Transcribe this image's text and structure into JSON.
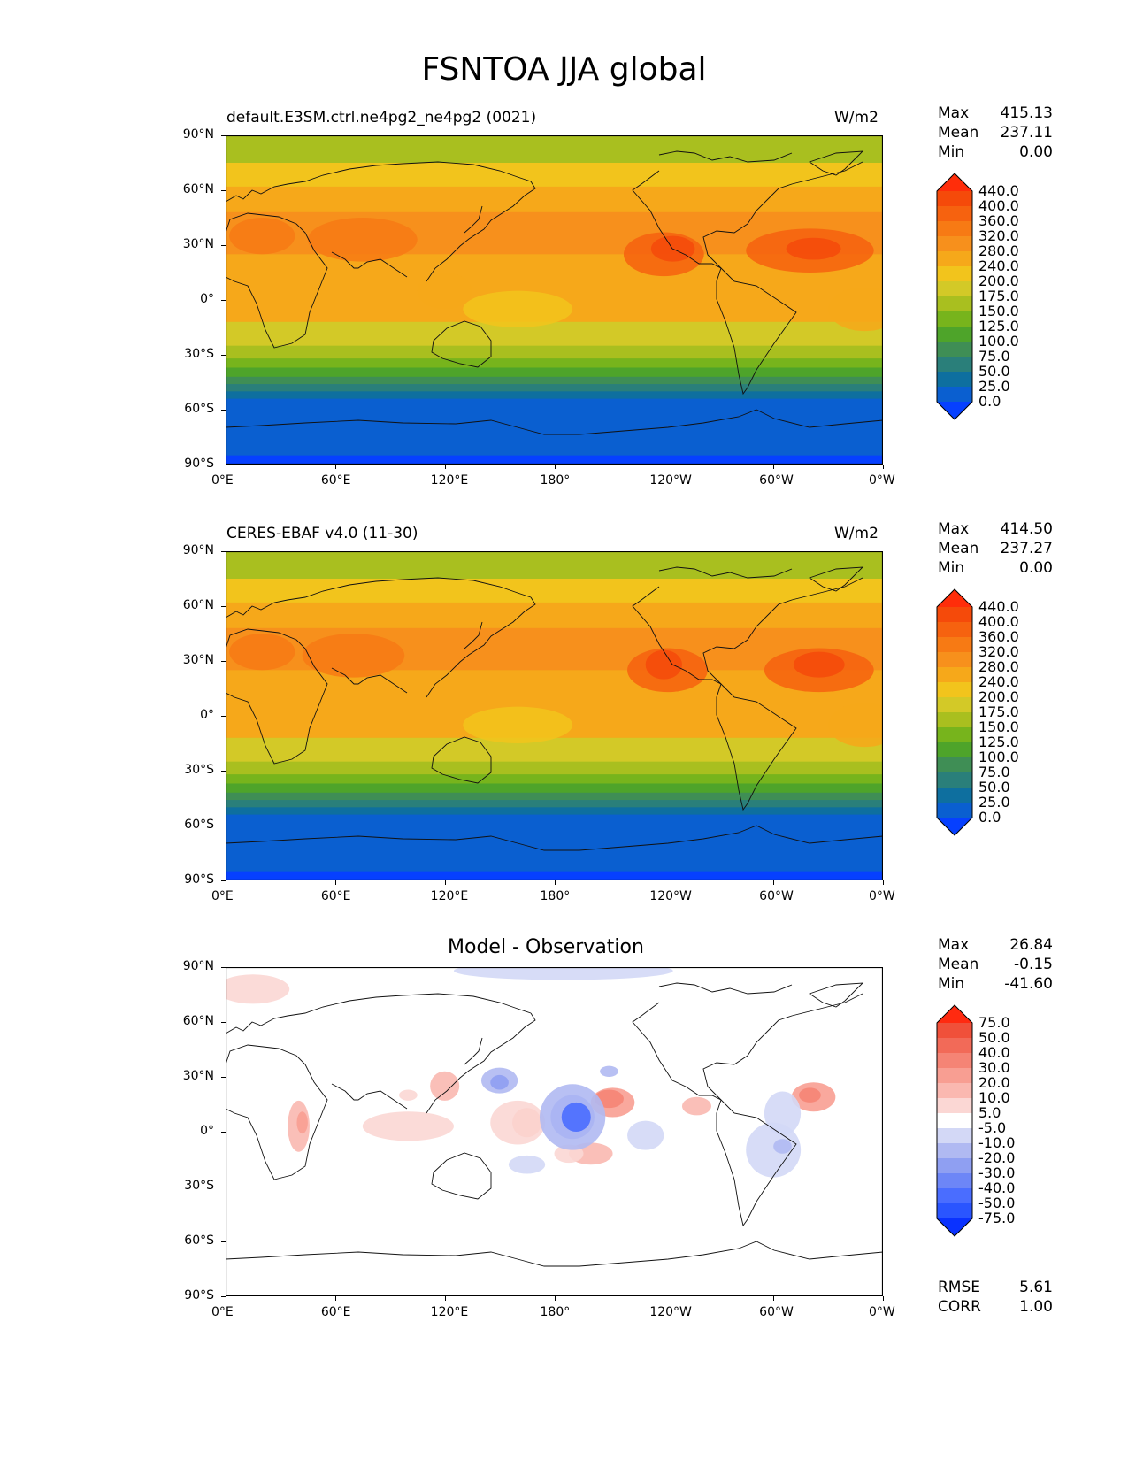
{
  "title": "FSNTOA JJA global",
  "x_ticks": [
    "0°E",
    "60°E",
    "120°E",
    "180°",
    "120°W",
    "60°W",
    "0°W"
  ],
  "y_ticks": [
    "90°N",
    "60°N",
    "30°N",
    "0°",
    "30°S",
    "60°S",
    "90°S"
  ],
  "colors": {
    "levels_full": [
      "#0640ff",
      "#0a5fd0",
      "#0e6f9f",
      "#2a7f7a",
      "#3f8e55",
      "#4ea42a",
      "#77b41c",
      "#a9bf1f",
      "#d3c927",
      "#f2c41c",
      "#f6a81a",
      "#f7901c",
      "#f77a14",
      "#f6620f",
      "#f54a0a",
      "#ff2d0a"
    ],
    "levels_diff": [
      "#0a32ff",
      "#2a55ff",
      "#4a6dff",
      "#6d86f7",
      "#8f9ff2",
      "#b0b9f2",
      "#d3d8f6",
      "#ffffff",
      "#fbd7d4",
      "#fab8b0",
      "#f89e92",
      "#f58475",
      "#f26a58",
      "#f0503a",
      "#ff2a10"
    ]
  },
  "panels": [
    {
      "label": "default.E3SM.ctrl.ne4pg2_ne4pg2 (0021)",
      "units": "W/m2",
      "stats": {
        "max_label": "Max",
        "max": "415.13",
        "mean_label": "Mean",
        "mean": "237.11",
        "min_label": "Min",
        "min": "0.00"
      },
      "colorbar": [
        "440.0",
        "400.0",
        "360.0",
        "320.0",
        "280.0",
        "240.0",
        "200.0",
        "175.0",
        "150.0",
        "125.0",
        "100.0",
        "75.0",
        "50.0",
        "25.0",
        "0.0"
      ]
    },
    {
      "label": "CERES-EBAF v4.0 (11-30)",
      "units": "W/m2",
      "stats": {
        "max_label": "Max",
        "max": "414.50",
        "mean_label": "Mean",
        "mean": "237.27",
        "min_label": "Min",
        "min": "0.00"
      },
      "colorbar": [
        "440.0",
        "400.0",
        "360.0",
        "320.0",
        "280.0",
        "240.0",
        "200.0",
        "175.0",
        "150.0",
        "125.0",
        "100.0",
        "75.0",
        "50.0",
        "25.0",
        "0.0"
      ]
    },
    {
      "title": "Model - Observation",
      "stats": {
        "max_label": "Max",
        "max": "26.84",
        "mean_label": "Mean",
        "mean": "-0.15",
        "min_label": "Min",
        "min": "-41.60"
      },
      "colorbar": [
        "75.0",
        "50.0",
        "40.0",
        "30.0",
        "20.0",
        "10.0",
        "5.0",
        "-5.0",
        "-10.0",
        "-20.0",
        "-30.0",
        "-40.0",
        "-50.0",
        "-75.0"
      ],
      "metrics": {
        "rmse_label": "RMSE",
        "rmse": "5.61",
        "corr_label": "CORR",
        "corr": "1.00"
      }
    }
  ]
}
